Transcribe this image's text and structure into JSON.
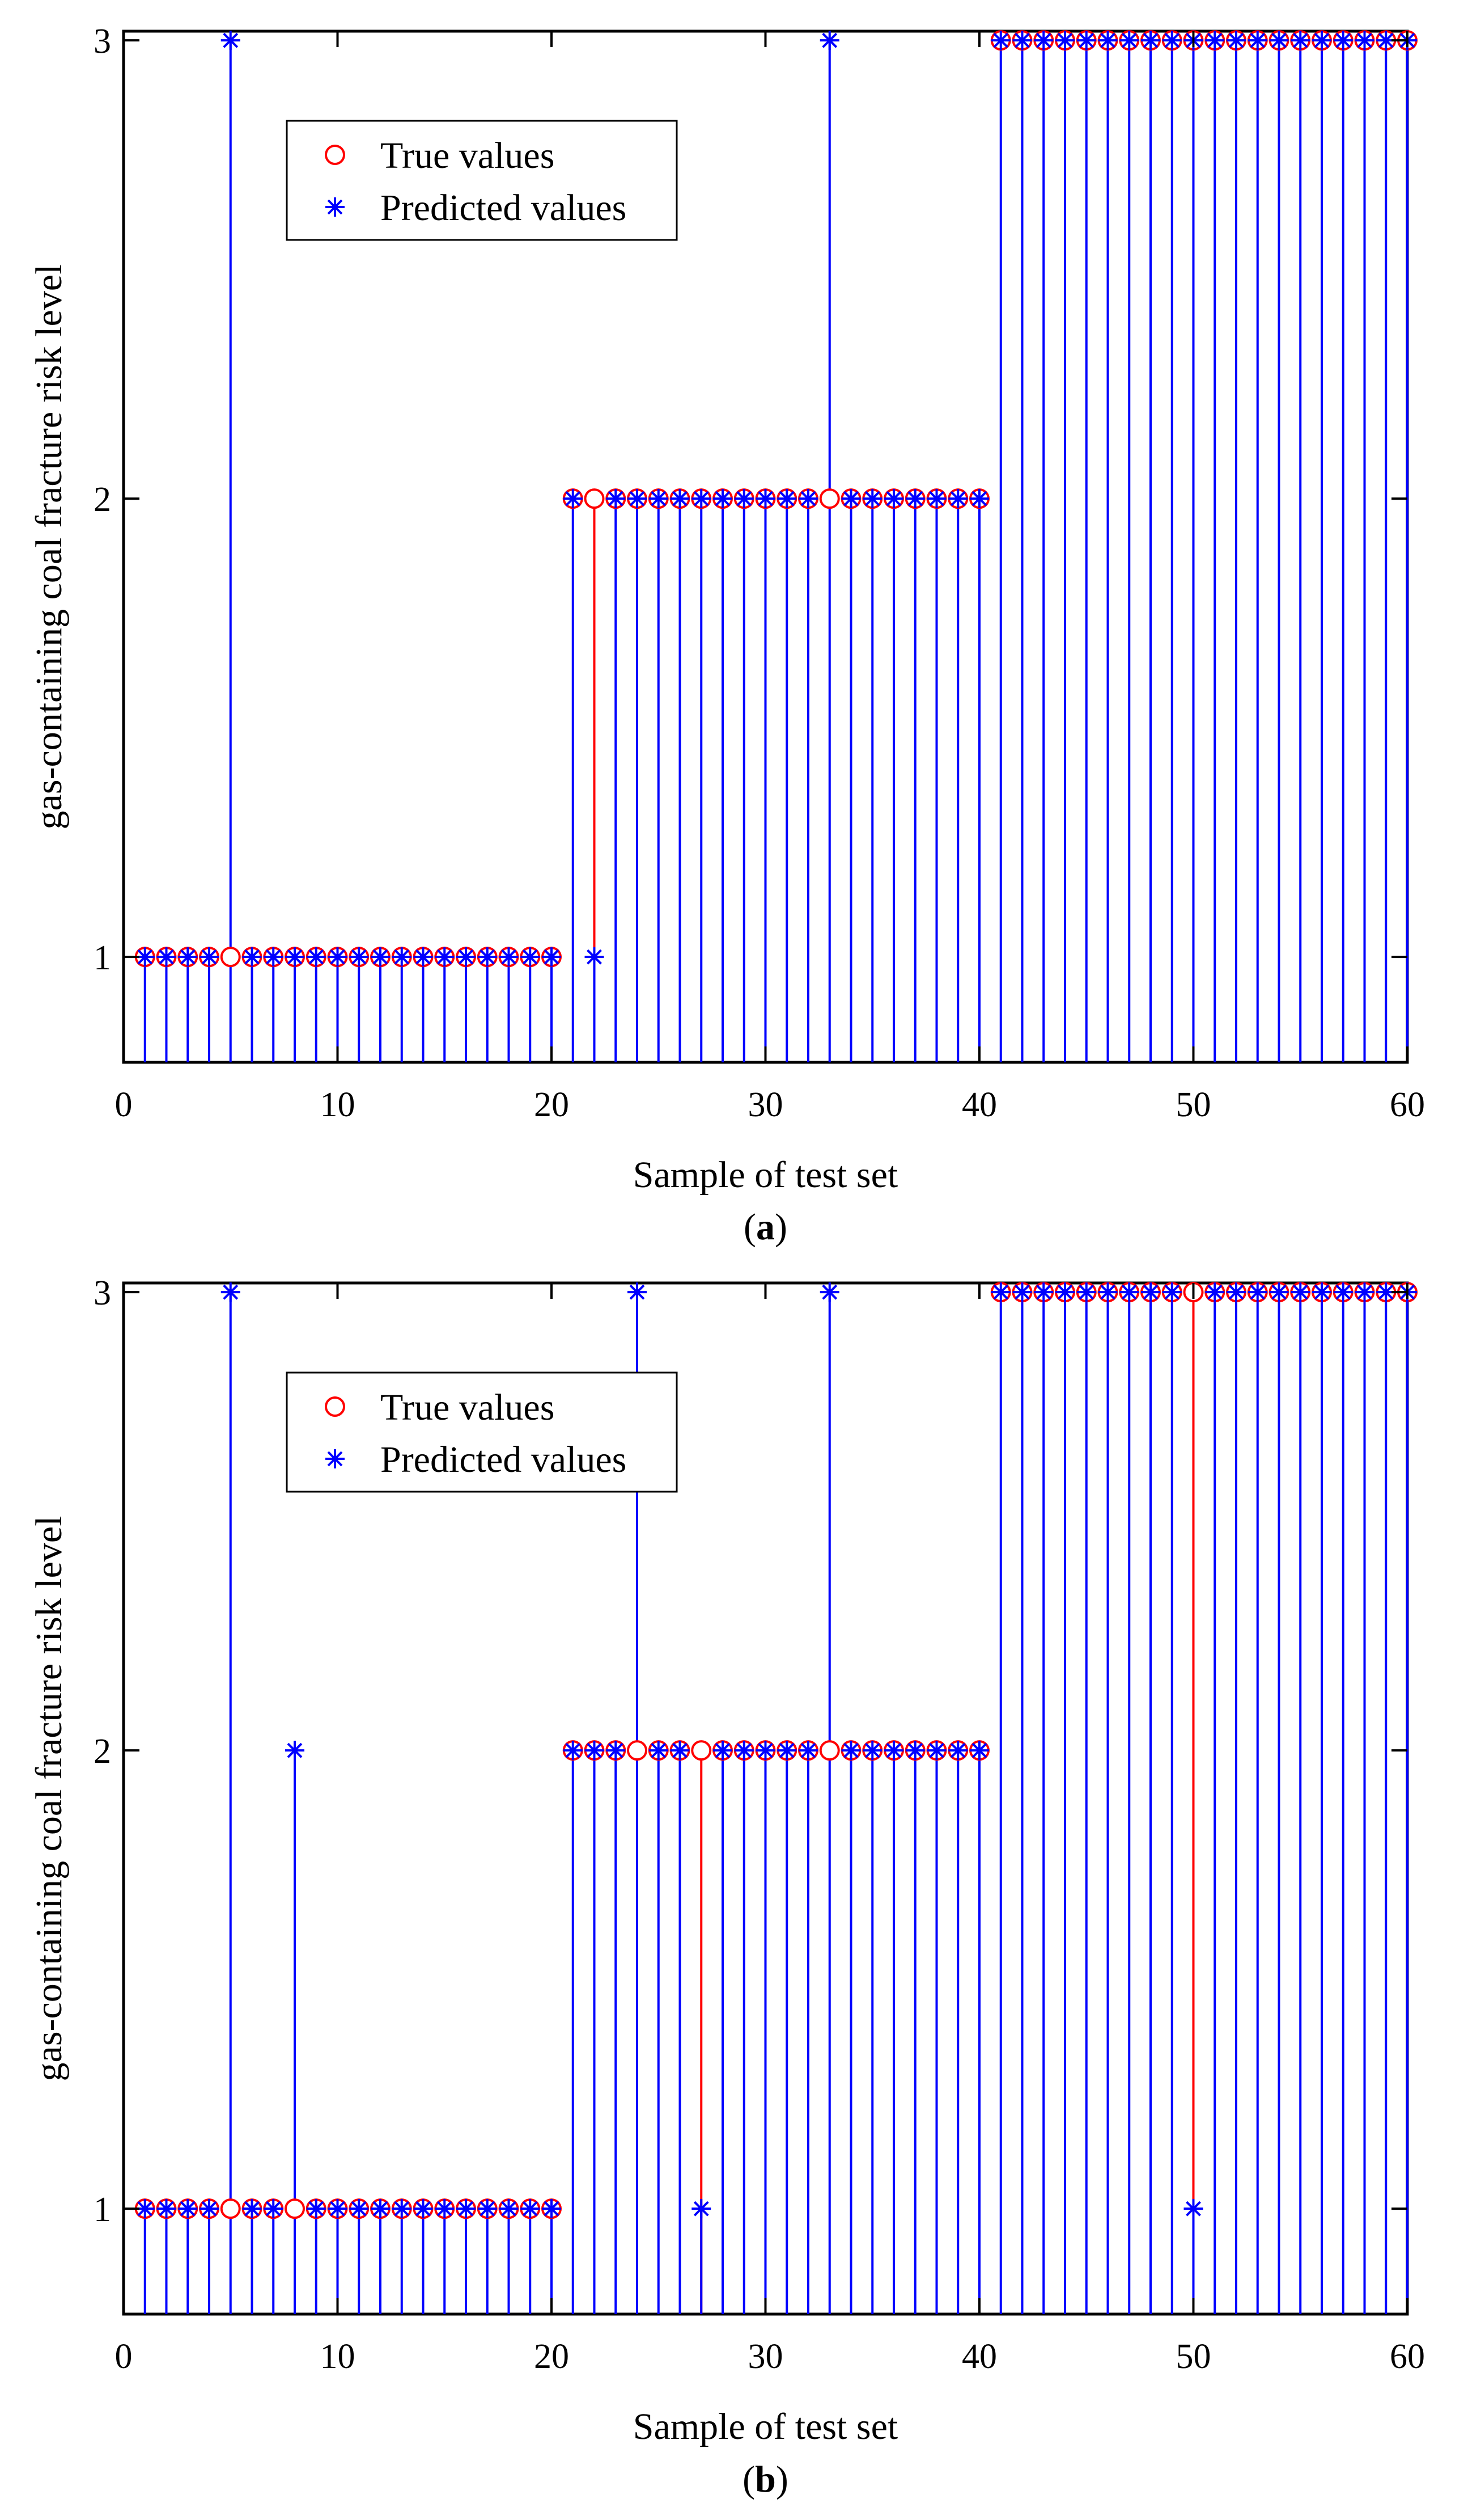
{
  "chart_data": [
    {
      "type": "stem",
      "panel_label": "a",
      "xlabel": "Sample of test set",
      "ylabel": "gas-containing coal fracture risk level",
      "xlim": [
        0,
        60
      ],
      "ylim": [
        0.77,
        3.02
      ],
      "xticks": [
        0,
        10,
        20,
        30,
        40,
        50,
        60
      ],
      "yticks": [
        1,
        2,
        3
      ],
      "legend": {
        "position": "top-left",
        "entries": [
          "True values",
          "Predicted values"
        ]
      },
      "x": [
        1,
        2,
        3,
        4,
        5,
        6,
        7,
        8,
        9,
        10,
        11,
        12,
        13,
        14,
        15,
        16,
        17,
        18,
        19,
        20,
        21,
        22,
        23,
        24,
        25,
        26,
        27,
        28,
        29,
        30,
        31,
        32,
        33,
        34,
        35,
        36,
        37,
        38,
        39,
        40,
        41,
        42,
        43,
        44,
        45,
        46,
        47,
        48,
        49,
        50,
        51,
        52,
        53,
        54,
        55,
        56,
        57,
        58,
        59,
        60
      ],
      "series": [
        {
          "name": "True values",
          "color": "#ff0000",
          "marker": "circle",
          "values": [
            1,
            1,
            1,
            1,
            1,
            1,
            1,
            1,
            1,
            1,
            1,
            1,
            1,
            1,
            1,
            1,
            1,
            1,
            1,
            1,
            2,
            2,
            2,
            2,
            2,
            2,
            2,
            2,
            2,
            2,
            2,
            2,
            2,
            2,
            2,
            2,
            2,
            2,
            2,
            2,
            3,
            3,
            3,
            3,
            3,
            3,
            3,
            3,
            3,
            3,
            3,
            3,
            3,
            3,
            3,
            3,
            3,
            3,
            3,
            3
          ]
        },
        {
          "name": "Predicted values",
          "color": "#0000ff",
          "marker": "asterisk",
          "values": [
            1,
            1,
            1,
            1,
            3,
            1,
            1,
            1,
            1,
            1,
            1,
            1,
            1,
            1,
            1,
            1,
            1,
            1,
            1,
            1,
            2,
            1,
            2,
            2,
            2,
            2,
            2,
            2,
            2,
            2,
            2,
            2,
            3,
            2,
            2,
            2,
            2,
            2,
            2,
            2,
            3,
            3,
            3,
            3,
            3,
            3,
            3,
            3,
            3,
            3,
            3,
            3,
            3,
            3,
            3,
            3,
            3,
            3,
            3,
            3
          ]
        }
      ]
    },
    {
      "type": "stem",
      "panel_label": "b",
      "xlabel": "Sample of test set",
      "ylabel": "gas-containing coal fracture risk level",
      "xlim": [
        0,
        60
      ],
      "ylim": [
        0.77,
        3.02
      ],
      "xticks": [
        0,
        10,
        20,
        30,
        40,
        50,
        60
      ],
      "yticks": [
        1,
        2,
        3
      ],
      "legend": {
        "position": "top-left",
        "entries": [
          "True values",
          "Predicted values"
        ]
      },
      "x": [
        1,
        2,
        3,
        4,
        5,
        6,
        7,
        8,
        9,
        10,
        11,
        12,
        13,
        14,
        15,
        16,
        17,
        18,
        19,
        20,
        21,
        22,
        23,
        24,
        25,
        26,
        27,
        28,
        29,
        30,
        31,
        32,
        33,
        34,
        35,
        36,
        37,
        38,
        39,
        40,
        41,
        42,
        43,
        44,
        45,
        46,
        47,
        48,
        49,
        50,
        51,
        52,
        53,
        54,
        55,
        56,
        57,
        58,
        59,
        60
      ],
      "series": [
        {
          "name": "True values",
          "color": "#ff0000",
          "marker": "circle",
          "values": [
            1,
            1,
            1,
            1,
            1,
            1,
            1,
            1,
            1,
            1,
            1,
            1,
            1,
            1,
            1,
            1,
            1,
            1,
            1,
            1,
            2,
            2,
            2,
            2,
            2,
            2,
            2,
            2,
            2,
            2,
            2,
            2,
            2,
            2,
            2,
            2,
            2,
            2,
            2,
            2,
            3,
            3,
            3,
            3,
            3,
            3,
            3,
            3,
            3,
            3,
            3,
            3,
            3,
            3,
            3,
            3,
            3,
            3,
            3,
            3
          ]
        },
        {
          "name": "Predicted values",
          "color": "#0000ff",
          "marker": "asterisk",
          "values": [
            1,
            1,
            1,
            1,
            3,
            1,
            1,
            2,
            1,
            1,
            1,
            1,
            1,
            1,
            1,
            1,
            1,
            1,
            1,
            1,
            2,
            2,
            2,
            3,
            2,
            2,
            1,
            2,
            2,
            2,
            2,
            2,
            3,
            2,
            2,
            2,
            2,
            2,
            2,
            2,
            3,
            3,
            3,
            3,
            3,
            3,
            3,
            3,
            3,
            1,
            3,
            3,
            3,
            3,
            3,
            3,
            3,
            3,
            3,
            3
          ]
        }
      ]
    }
  ]
}
